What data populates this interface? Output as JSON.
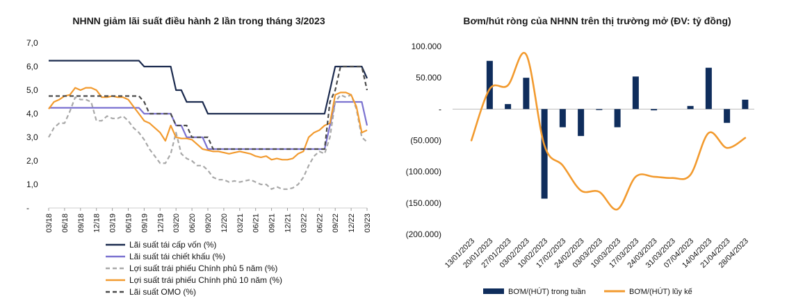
{
  "chart_data": [
    {
      "type": "line",
      "title": "NHNN giảm lãi suất điều hành 2 lần trong tháng 3/2023",
      "xlabel": "",
      "ylabel": "",
      "ylim": [
        0,
        7
      ],
      "yticks": [
        "-",
        "1,0",
        "2,0",
        "3,0",
        "4,0",
        "5,0",
        "6,0",
        "7,0"
      ],
      "x": [
        "03/18",
        "04/18",
        "05/18",
        "06/18",
        "07/18",
        "08/18",
        "09/18",
        "10/18",
        "11/18",
        "12/18",
        "01/19",
        "02/19",
        "03/19",
        "04/19",
        "05/19",
        "06/19",
        "07/19",
        "08/19",
        "09/19",
        "10/19",
        "11/19",
        "12/19",
        "01/20",
        "02/20",
        "03/20",
        "04/20",
        "05/20",
        "06/20",
        "07/20",
        "08/20",
        "09/20",
        "10/20",
        "11/20",
        "12/20",
        "01/21",
        "02/21",
        "03/21",
        "04/21",
        "05/21",
        "06/21",
        "07/21",
        "08/21",
        "09/21",
        "10/21",
        "11/21",
        "12/21",
        "01/22",
        "02/22",
        "03/22",
        "04/22",
        "05/22",
        "06/22",
        "07/22",
        "08/22",
        "09/22",
        "10/22",
        "11/22",
        "12/22",
        "01/23",
        "02/23",
        "03/23"
      ],
      "x_tick_labels": [
        "03/18",
        "06/18",
        "09/18",
        "12/18",
        "03/19",
        "06/19",
        "09/19",
        "12/19",
        "03/20",
        "06/20",
        "09/20",
        "12/20",
        "03/21",
        "06/21",
        "09/21",
        "12/21",
        "03/22",
        "06/22",
        "09/22",
        "12/22",
        "03/23"
      ],
      "legend_position": "bottom",
      "grid": false,
      "series": [
        {
          "name": "Lãi suất tái cấp vốn (%)",
          "color": "#1b2a4e",
          "dash": "solid",
          "values": [
            6.25,
            6.25,
            6.25,
            6.25,
            6.25,
            6.25,
            6.25,
            6.25,
            6.25,
            6.25,
            6.25,
            6.25,
            6.25,
            6.25,
            6.25,
            6.25,
            6.25,
            6.25,
            6.0,
            6.0,
            6.0,
            6.0,
            6.0,
            6.0,
            5.0,
            5.0,
            4.5,
            4.5,
            4.5,
            4.5,
            4.0,
            4.0,
            4.0,
            4.0,
            4.0,
            4.0,
            4.0,
            4.0,
            4.0,
            4.0,
            4.0,
            4.0,
            4.0,
            4.0,
            4.0,
            4.0,
            4.0,
            4.0,
            4.0,
            4.0,
            4.0,
            4.0,
            4.0,
            5.0,
            6.0,
            6.0,
            6.0,
            6.0,
            6.0,
            6.0,
            5.5
          ]
        },
        {
          "name": "Lãi suất tái chiết khấu (%)",
          "color": "#7b72d0",
          "dash": "solid",
          "values": [
            4.25,
            4.25,
            4.25,
            4.25,
            4.25,
            4.25,
            4.25,
            4.25,
            4.25,
            4.25,
            4.25,
            4.25,
            4.25,
            4.25,
            4.25,
            4.25,
            4.25,
            4.25,
            4.0,
            4.0,
            4.0,
            4.0,
            4.0,
            4.0,
            3.5,
            3.5,
            3.0,
            3.0,
            3.0,
            3.0,
            2.5,
            2.5,
            2.5,
            2.5,
            2.5,
            2.5,
            2.5,
            2.5,
            2.5,
            2.5,
            2.5,
            2.5,
            2.5,
            2.5,
            2.5,
            2.5,
            2.5,
            2.5,
            2.5,
            2.5,
            2.5,
            2.5,
            2.5,
            3.5,
            4.5,
            4.5,
            4.5,
            4.5,
            4.5,
            4.5,
            3.5
          ]
        },
        {
          "name": "Lợi suất trái phiếu Chính phủ 5 năm (%)",
          "color": "#a8a8a8",
          "dash": "dashed",
          "values": [
            3.0,
            3.4,
            3.6,
            3.6,
            4.1,
            4.7,
            4.6,
            4.6,
            4.5,
            3.7,
            3.7,
            3.9,
            3.8,
            3.8,
            3.9,
            3.7,
            3.4,
            3.2,
            2.9,
            2.5,
            2.2,
            1.9,
            1.9,
            2.3,
            3.2,
            2.3,
            2.1,
            2.0,
            1.8,
            1.8,
            1.6,
            1.3,
            1.2,
            1.2,
            1.1,
            1.15,
            1.1,
            1.15,
            1.2,
            1.1,
            1.0,
            1.0,
            0.8,
            0.9,
            0.8,
            0.8,
            0.85,
            1.0,
            1.3,
            1.8,
            2.2,
            2.4,
            2.3,
            3.0,
            4.5,
            4.8,
            4.7,
            4.8,
            4.2,
            3.0,
            2.8
          ]
        },
        {
          "name": "Lợi suất trái phiếu Chính phủ 10 năm (%)",
          "color": "#f29a2e",
          "dash": "solid",
          "values": [
            4.2,
            4.5,
            4.6,
            4.75,
            4.8,
            5.1,
            5.0,
            5.1,
            5.1,
            5.0,
            4.7,
            4.7,
            4.75,
            4.7,
            4.7,
            4.6,
            4.3,
            4.0,
            3.7,
            3.6,
            3.4,
            3.2,
            2.85,
            3.5,
            3.0,
            2.95,
            2.95,
            2.9,
            2.7,
            2.5,
            2.45,
            2.4,
            2.4,
            2.35,
            2.3,
            2.35,
            2.4,
            2.35,
            2.3,
            2.2,
            2.15,
            2.2,
            2.05,
            2.1,
            2.05,
            2.05,
            2.1,
            2.3,
            2.4,
            3.0,
            3.2,
            3.3,
            3.5,
            3.6,
            4.8,
            4.9,
            4.9,
            4.8,
            4.3,
            3.2,
            3.3
          ]
        },
        {
          "name": "Lãi suất OMO (%)",
          "color": "#4a4a4a",
          "dash": "dashed",
          "values": [
            4.75,
            4.75,
            4.75,
            4.75,
            4.75,
            4.75,
            4.75,
            4.75,
            4.75,
            4.75,
            4.75,
            4.75,
            4.75,
            4.75,
            4.75,
            4.75,
            4.75,
            4.75,
            4.5,
            4.0,
            4.0,
            4.0,
            4.0,
            4.0,
            3.5,
            3.5,
            3.5,
            3.0,
            3.0,
            3.0,
            3.0,
            2.5,
            2.5,
            2.5,
            2.5,
            2.5,
            2.5,
            2.5,
            2.5,
            2.5,
            2.5,
            2.5,
            2.5,
            2.5,
            2.5,
            2.5,
            2.5,
            2.5,
            2.5,
            2.5,
            2.5,
            2.5,
            2.5,
            4.5,
            5.0,
            6.0,
            6.0,
            6.0,
            6.0,
            6.0,
            5.0
          ]
        }
      ]
    },
    {
      "type": "bar",
      "title": "Bơm/hút ròng của NHNN trên thị trường mở (ĐV: tỷ đồng)",
      "xlabel": "",
      "ylabel": "",
      "ylim": [
        -200000,
        100000
      ],
      "yticks": [
        {
          "value": 100000,
          "label": "100.000"
        },
        {
          "value": 50000,
          "label": "50.000"
        },
        {
          "value": 0,
          "label": "-"
        },
        {
          "value": -50000,
          "label": "(50.000)"
        },
        {
          "value": -100000,
          "label": "(100.000)"
        },
        {
          "value": -150000,
          "label": "(150.000)"
        },
        {
          "value": -200000,
          "label": "(200.000)"
        }
      ],
      "categories": [
        "13/01/2023",
        "20/01/2023",
        "27/01/2023",
        "03/02/2023",
        "10/02/2023",
        "17/02/2023",
        "24/02/2023",
        "03/03/2023",
        "10/03/2023",
        "17/03/2023",
        "24/03/2023",
        "31/03/2023",
        "07/04/2023",
        "14/04/2023",
        "21/04/2023",
        "28/04/2023"
      ],
      "legend_position": "bottom",
      "grid": false,
      "series": [
        {
          "name": "BƠM/(HÚT) trong tuần",
          "type": "bar",
          "color": "#0f2d5c",
          "values": [
            0,
            77000,
            8000,
            50000,
            -143000,
            -29000,
            -43000,
            -1500,
            -29000,
            52000,
            -2000,
            0,
            5000,
            66000,
            -22000,
            15000
          ]
        },
        {
          "name": "BƠM/(HÚT) lũy kế",
          "type": "line",
          "color": "#f29a2e",
          "values": [
            -50000,
            32000,
            38000,
            87000,
            -58000,
            -90000,
            -130000,
            -132000,
            -160000,
            -108000,
            -108000,
            -110000,
            -105000,
            -38000,
            -62000,
            -46000
          ]
        }
      ]
    }
  ]
}
